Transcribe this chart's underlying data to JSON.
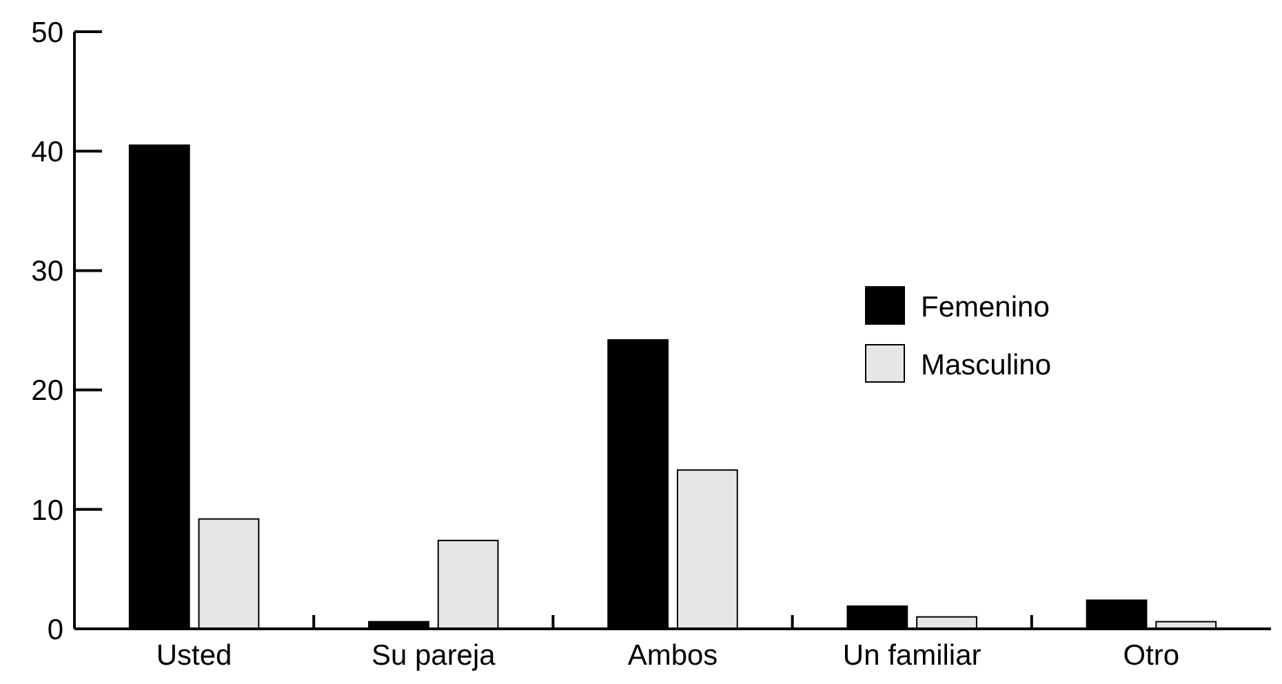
{
  "chart_data": {
    "type": "bar",
    "categories": [
      "Usted",
      "Su pareja",
      "Ambos",
      "Un familiar",
      "Otro"
    ],
    "series": [
      {
        "name": "Femenino",
        "color": "#000000",
        "values": [
          40.5,
          0.6,
          24.2,
          1.9,
          2.4
        ]
      },
      {
        "name": "Masculino",
        "color": "#e6e6e6",
        "values": [
          9.2,
          7.4,
          13.3,
          1.0,
          0.6
        ]
      }
    ],
    "ylim": [
      0,
      50
    ],
    "yticks": [
      0,
      10,
      20,
      30,
      40,
      50
    ],
    "legend": "right",
    "grid": false
  }
}
